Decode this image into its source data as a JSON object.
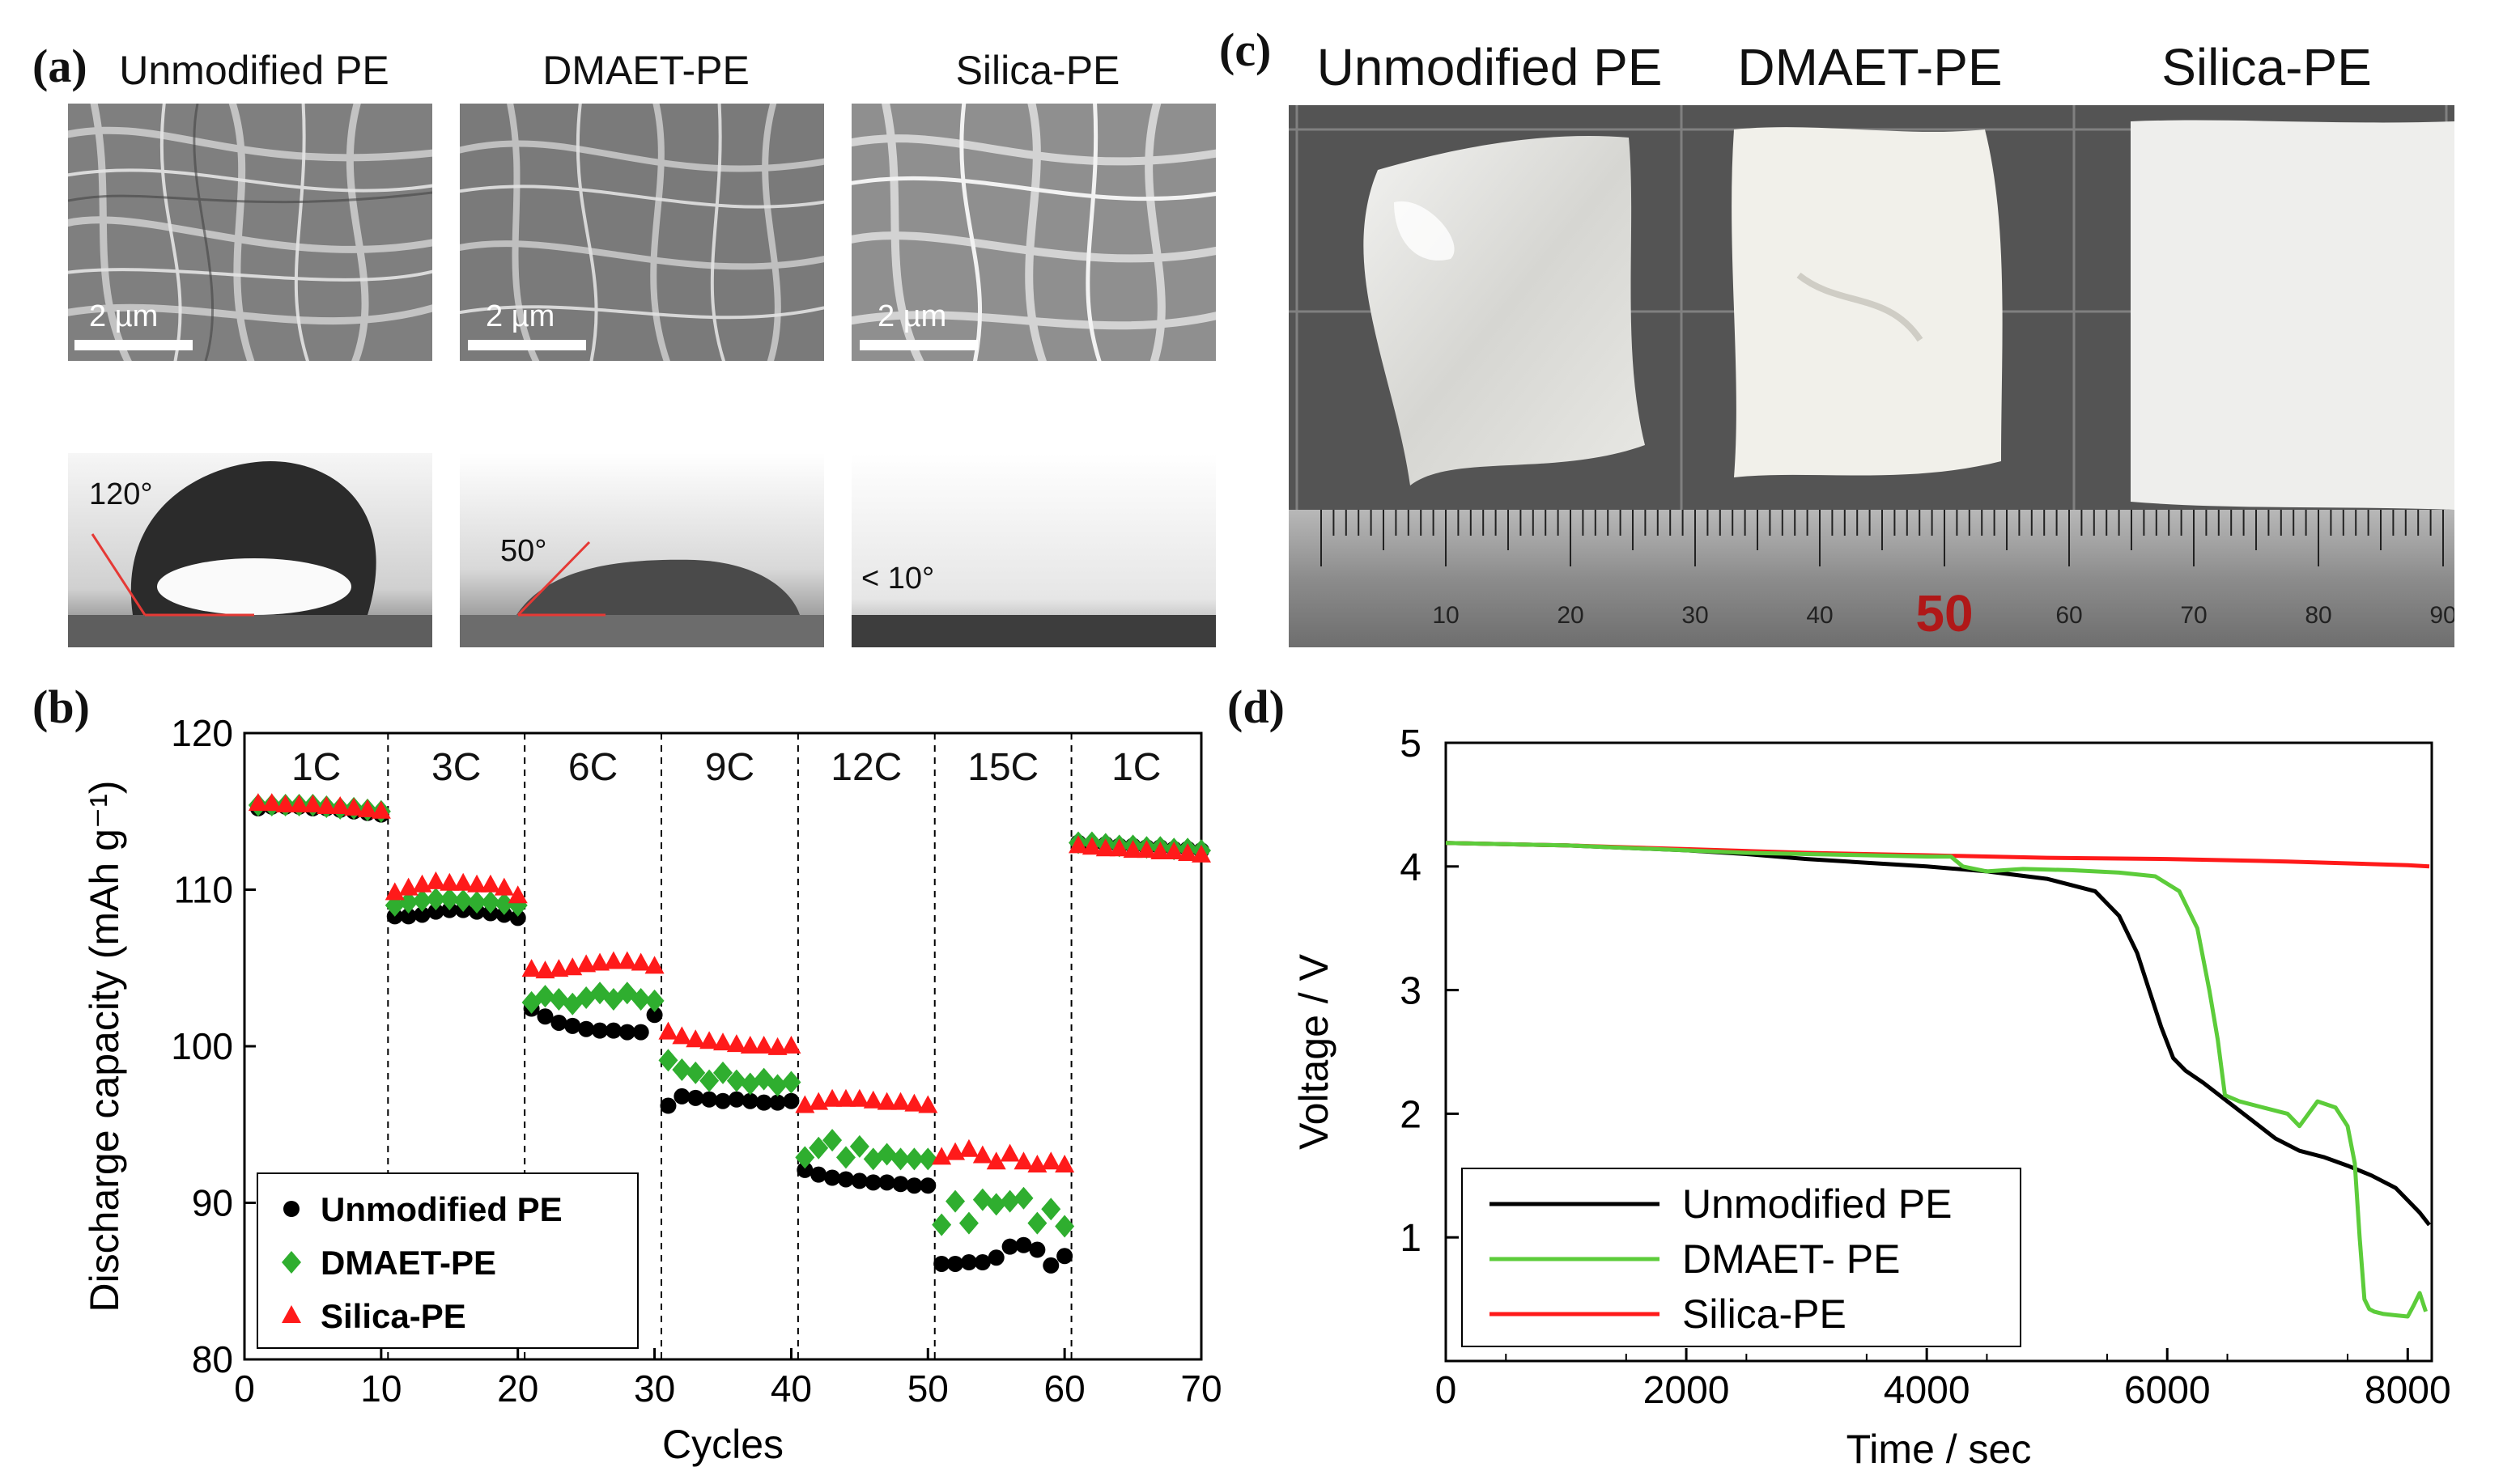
{
  "panels": {
    "a": {
      "letter": "(a)",
      "sem": [
        {
          "title": "Unmodified PE",
          "scale": "2 µm",
          "angle": "120°"
        },
        {
          "title": "DMAET-PE",
          "scale": "2 µm",
          "angle": "50°"
        },
        {
          "title": "Silica-PE",
          "scale": "2 µm",
          "angle": "< 10°"
        }
      ]
    },
    "b": {
      "letter": "(b)"
    },
    "c": {
      "letter": "(c)",
      "titles": [
        "Unmodified PE",
        "DMAET-PE",
        "Silica-PE"
      ],
      "ruler_numbers": [
        "10",
        "20",
        "30",
        "40",
        "50",
        "60",
        "70",
        "80",
        "90"
      ]
    },
    "d": {
      "letter": "(d)"
    }
  },
  "colors": {
    "unmodified": "#000000",
    "dmaet": "#2fae2f",
    "silica": "#ff1a1a",
    "dmaet_line": "#5ccc3a"
  },
  "chart_data": [
    {
      "id": "b",
      "type": "scatter",
      "xlabel": "Cycles",
      "ylabel": "Discharge capacity (mAh g⁻¹)",
      "xlim": [
        0,
        70
      ],
      "ylim": [
        80,
        120
      ],
      "xticks": [
        0,
        10,
        20,
        30,
        40,
        50,
        60,
        70
      ],
      "yticks": [
        80,
        90,
        100,
        110,
        120
      ],
      "rate_labels": [
        "1C",
        "3C",
        "6C",
        "9C",
        "12C",
        "15C",
        "1C"
      ],
      "dividers": [
        10.5,
        20.5,
        30.5,
        40.5,
        50.5,
        60.5
      ],
      "legend": [
        "Unmodified PE",
        "DMAET-PE",
        "Silica-PE"
      ],
      "series": [
        {
          "name": "Unmodified PE",
          "marker": "circle",
          "values": [
            115.2,
            115.3,
            115.3,
            115.3,
            115.2,
            115.2,
            115.1,
            115.0,
            114.9,
            114.8,
            108.3,
            108.3,
            108.4,
            108.6,
            108.7,
            108.7,
            108.6,
            108.5,
            108.4,
            108.2,
            102.4,
            101.9,
            101.5,
            101.3,
            101.1,
            101.0,
            101.0,
            100.9,
            100.9,
            102.0,
            96.2,
            96.8,
            96.7,
            96.6,
            96.5,
            96.6,
            96.5,
            96.4,
            96.4,
            96.5,
            92.1,
            91.8,
            91.6,
            91.5,
            91.4,
            91.3,
            91.3,
            91.2,
            91.1,
            91.1,
            86.1,
            86.1,
            86.2,
            86.2,
            86.5,
            87.2,
            87.3,
            87.0,
            86.0,
            86.6,
            113.0,
            112.9,
            112.9,
            112.8,
            112.8,
            112.7,
            112.7,
            112.6,
            112.6,
            112.5
          ]
        },
        {
          "name": "DMAET-PE",
          "marker": "diamond",
          "values": [
            115.4,
            115.4,
            115.4,
            115.4,
            115.4,
            115.3,
            115.2,
            115.2,
            115.1,
            115.0,
            109.0,
            109.2,
            109.3,
            109.4,
            109.4,
            109.3,
            109.2,
            109.2,
            109.1,
            109.0,
            102.8,
            103.2,
            103.0,
            102.7,
            103.1,
            103.4,
            103.0,
            103.4,
            103.0,
            102.9,
            99.1,
            98.5,
            98.3,
            97.8,
            98.3,
            97.8,
            97.6,
            97.9,
            97.5,
            97.7,
            92.9,
            93.5,
            94.0,
            92.9,
            93.6,
            92.8,
            93.1,
            92.8,
            92.8,
            92.8,
            88.6,
            90.1,
            88.7,
            90.2,
            89.9,
            90.1,
            90.3,
            88.7,
            89.6,
            88.5,
            113.0,
            113.0,
            112.9,
            112.8,
            112.8,
            112.7,
            112.7,
            112.6,
            112.6,
            112.5
          ]
        },
        {
          "name": "Silica-PE",
          "marker": "triangle",
          "values": [
            115.5,
            115.5,
            115.4,
            115.4,
            115.4,
            115.3,
            115.3,
            115.2,
            115.1,
            115.0,
            109.8,
            110.1,
            110.3,
            110.5,
            110.4,
            110.4,
            110.3,
            110.3,
            110.1,
            109.6,
            104.9,
            104.8,
            104.9,
            105.0,
            105.2,
            105.3,
            105.4,
            105.4,
            105.3,
            105.1,
            100.9,
            100.6,
            100.4,
            100.3,
            100.2,
            100.1,
            100.0,
            100.0,
            99.9,
            100.0,
            96.2,
            96.4,
            96.6,
            96.6,
            96.6,
            96.5,
            96.4,
            96.4,
            96.3,
            96.2,
            92.9,
            93.2,
            93.4,
            93.0,
            92.6,
            93.1,
            92.6,
            92.4,
            92.6,
            92.4,
            112.8,
            112.7,
            112.6,
            112.6,
            112.5,
            112.5,
            112.4,
            112.4,
            112.3,
            112.2
          ]
        }
      ]
    },
    {
      "id": "d",
      "type": "line",
      "xlabel": "Time / sec",
      "ylabel": "Voltage / V",
      "xlim": [
        0,
        8200
      ],
      "ylim": [
        0,
        5
      ],
      "xticks": [
        0,
        2000,
        4000,
        6000,
        8000
      ],
      "yticks": [
        1,
        2,
        3,
        4,
        5
      ],
      "legend": [
        "Unmodified PE",
        "DMAET- PE",
        "Silica-PE"
      ],
      "series": [
        {
          "name": "Unmodified PE",
          "x": [
            0,
            1000,
            2000,
            2500,
            3000,
            3500,
            4000,
            4500,
            5000,
            5400,
            5600,
            5750,
            5850,
            5950,
            6050,
            6150,
            6300,
            6500,
            6700,
            6900,
            7100,
            7300,
            7500,
            7700,
            7900,
            8000,
            8100,
            8180
          ],
          "y": [
            4.19,
            4.17,
            4.13,
            4.1,
            4.06,
            4.03,
            4.0,
            3.96,
            3.9,
            3.8,
            3.6,
            3.3,
            3.0,
            2.7,
            2.45,
            2.35,
            2.25,
            2.1,
            1.95,
            1.8,
            1.7,
            1.65,
            1.58,
            1.5,
            1.4,
            1.3,
            1.2,
            1.1
          ]
        },
        {
          "name": "DMAET- PE",
          "x": [
            0,
            1000,
            2000,
            2500,
            3000,
            3500,
            4000,
            4200,
            4300,
            4500,
            4800,
            5200,
            5600,
            5900,
            6100,
            6250,
            6350,
            6420,
            6480,
            6600,
            6800,
            7000,
            7100,
            7250,
            7400,
            7500,
            7560,
            7600,
            7640,
            7680,
            7720,
            7800,
            7900,
            8000,
            8050,
            8100,
            8150
          ],
          "y": [
            4.19,
            4.17,
            4.13,
            4.11,
            4.1,
            4.09,
            4.08,
            4.08,
            4.0,
            3.96,
            3.98,
            3.97,
            3.95,
            3.92,
            3.8,
            3.5,
            3.0,
            2.6,
            2.15,
            2.1,
            2.05,
            2.0,
            1.9,
            2.1,
            2.05,
            1.9,
            1.6,
            1.0,
            0.5,
            0.42,
            0.4,
            0.38,
            0.37,
            0.36,
            0.45,
            0.55,
            0.4
          ]
        },
        {
          "name": "Silica-PE",
          "x": [
            0,
            1000,
            2000,
            3000,
            4000,
            5000,
            6000,
            7000,
            8000,
            8180
          ],
          "y": [
            4.19,
            4.17,
            4.14,
            4.11,
            4.09,
            4.07,
            4.06,
            4.04,
            4.01,
            4.0
          ]
        }
      ]
    }
  ]
}
